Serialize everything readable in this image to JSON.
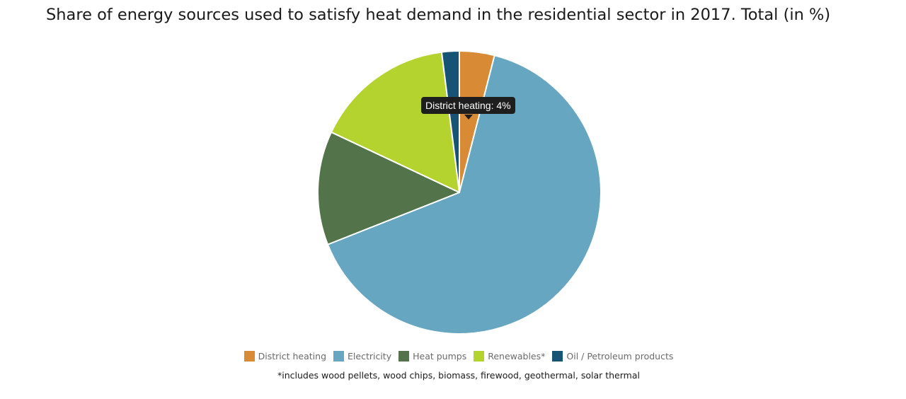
{
  "chart_data": {
    "type": "pie",
    "title": "Share of energy sources used to satisfy heat demand in the residential sector in 2017. Total (in %)",
    "slices": [
      {
        "name": "District heating",
        "value": 4,
        "color": "#d88a35"
      },
      {
        "name": "Electricity",
        "value": 65,
        "color": "#67a6c0"
      },
      {
        "name": "Heat pumps",
        "value": 13,
        "color": "#53734b"
      },
      {
        "name": "Renewables*",
        "value": 16,
        "color": "#b5d32e"
      },
      {
        "name": "Oil / Petroleum products",
        "value": 2,
        "color": "#165374"
      }
    ],
    "tooltip": "District heating: 4%",
    "footnote": "*includes wood pellets, wood chips, biomass, firewood, geothermal, solar thermal",
    "legend_position": "bottom"
  }
}
